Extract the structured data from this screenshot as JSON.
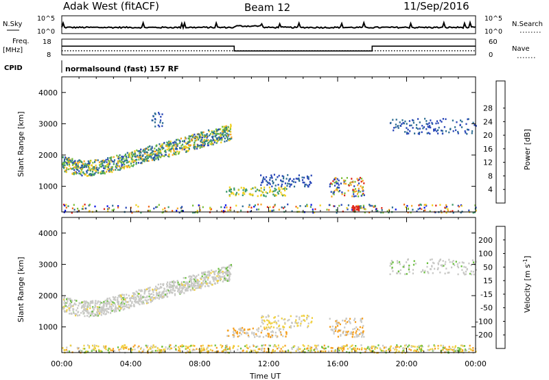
{
  "header": {
    "station": "Adak West (fitACF)",
    "beam": "Beam 12",
    "date": "11/Sep/2016"
  },
  "params": {
    "nsky_label": "N.Sky",
    "nsearch_label": "N.Search",
    "nsky_ticks": [
      "10^5",
      "10^0"
    ],
    "nsearch_ticks": [
      "10^5",
      "10^0"
    ],
    "freq_label": "Freq.",
    "freq_unit": "[MHz]",
    "freq_ticks": [
      "18",
      "8"
    ],
    "nave_label": "Nave",
    "nave_ticks": [
      "60",
      "0"
    ],
    "cpid_label": "CPID",
    "cpid_text": "normalsound (fast) 157 RF"
  },
  "axes": {
    "ylabel": "Slant Range [km]",
    "xlabel": "Time UT",
    "yticks": [
      "1000",
      "2000",
      "3000",
      "4000"
    ],
    "xticks": [
      "00:00",
      "04:00",
      "08:00",
      "12:00",
      "16:00",
      "20:00",
      "00:00"
    ]
  },
  "colorbars": {
    "power_label": "Power [dB]",
    "power_ticks": [
      "4",
      "8",
      "12",
      "16",
      "20",
      "24",
      "28"
    ],
    "power_colors": [
      "#0b14e6",
      "#2a48b8",
      "#2e6e93",
      "#3d9a6a",
      "#7bbf3a",
      "#f0d020",
      "#f5a623",
      "#f26b1d",
      "#e0281a"
    ],
    "velocity_label": "Velocity [m s^-1]",
    "velocity_ticks": [
      "200",
      "100",
      "50",
      "15",
      "-15",
      "-50",
      "-100",
      "-200"
    ],
    "velocity_colors": [
      "#2030c0",
      "#2e6aa8",
      "#3e8c5a",
      "#6cc040",
      "#c9c9c6",
      "#f0d040",
      "#f5a020",
      "#f07010",
      "#e02010"
    ]
  },
  "chart_data": [
    {
      "type": "heatmap",
      "title": "Power",
      "xlabel": "Time UT",
      "ylabel": "Slant Range [km]",
      "xlim": [
        "00:00",
        "24:00"
      ],
      "ylim": [
        180,
        4500
      ],
      "value_label": "Power [dB]",
      "echo_regions": [
        {
          "time": [
            "00:00",
            "09:50"
          ],
          "range_km": [
            1500,
            2900
          ],
          "power_db": [
            8,
            26
          ]
        },
        {
          "time": [
            "05:10",
            "05:50"
          ],
          "range_km": [
            2900,
            3400
          ],
          "power_db": [
            4,
            12
          ]
        },
        {
          "time": [
            "09:30",
            "13:00"
          ],
          "range_km": [
            700,
            1000
          ],
          "power_db": [
            8,
            16
          ]
        },
        {
          "time": [
            "11:30",
            "14:30"
          ],
          "range_km": [
            1000,
            1400
          ],
          "power_db": [
            4,
            12
          ]
        },
        {
          "time": [
            "15:30",
            "17:30"
          ],
          "range_km": [
            700,
            1300
          ],
          "power_db": [
            8,
            26
          ]
        },
        {
          "time": [
            "19:00",
            "24:00"
          ],
          "range_km": [
            2700,
            3200
          ],
          "power_db": [
            4,
            12
          ]
        },
        {
          "time": [
            "00:00",
            "24:00"
          ],
          "range_km": [
            180,
            450
          ],
          "power_db": [
            4,
            28
          ]
        }
      ]
    },
    {
      "type": "heatmap",
      "title": "Velocity",
      "xlabel": "Time UT",
      "ylabel": "Slant Range [km]",
      "xlim": [
        "00:00",
        "24:00"
      ],
      "ylim": [
        180,
        4500
      ],
      "value_label": "Velocity [m s^-1]",
      "echo_regions": [
        {
          "time": [
            "00:00",
            "09:50"
          ],
          "range_km": [
            1500,
            2900
          ],
          "velocity_ms": [
            -15,
            15
          ]
        },
        {
          "time": [
            "09:30",
            "13:00"
          ],
          "range_km": [
            700,
            1000
          ],
          "velocity_ms": [
            -50,
            15
          ]
        },
        {
          "time": [
            "11:30",
            "14:30"
          ],
          "range_km": [
            1000,
            1400
          ],
          "velocity_ms": [
            -50,
            15
          ]
        },
        {
          "time": [
            "15:30",
            "17:30"
          ],
          "range_km": [
            700,
            1300
          ],
          "velocity_ms": [
            -50,
            15
          ]
        },
        {
          "time": [
            "19:00",
            "24:00"
          ],
          "range_km": [
            2700,
            3200
          ],
          "velocity_ms": [
            -15,
            15
          ]
        }
      ]
    },
    {
      "type": "line",
      "title": "Freq.",
      "series": [
        {
          "points": [
            [
              "00:00",
              13.5
            ],
            [
              "10:00",
              13.5
            ],
            [
              "10:00",
              10.5
            ],
            [
              "18:00",
              10.5
            ],
            [
              "18:00",
              13.5
            ],
            [
              "24:00",
              13.5
            ]
          ]
        }
      ],
      "ylim": [
        8,
        18
      ]
    }
  ]
}
